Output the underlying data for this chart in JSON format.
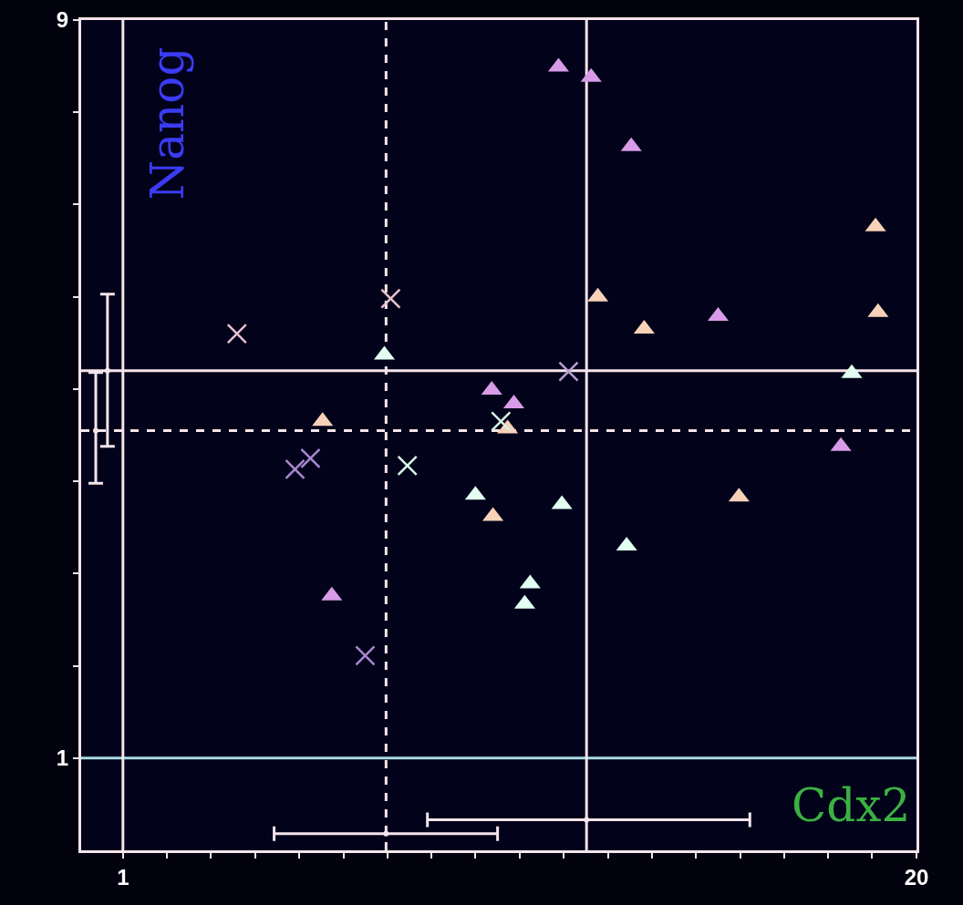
{
  "chart_data": {
    "type": "scatter",
    "xlabel": "Cdx2",
    "ylabel": "Nanog",
    "grid": false,
    "xlim": [
      0,
      20
    ],
    "xticks": [
      1,
      {
        "value": 2.06,
        "label": null
      },
      {
        "value": 3.11,
        "label": null
      },
      {
        "value": 4.17,
        "label": null
      },
      {
        "value": 5.22,
        "label": null
      },
      {
        "value": 6.28,
        "label": null
      },
      {
        "value": 7.33,
        "label": null
      },
      {
        "value": 8.39,
        "label": null
      },
      {
        "value": 9.44,
        "label": null
      },
      {
        "value": 10.5,
        "label": null
      },
      {
        "value": 11.56,
        "label": null
      },
      {
        "value": 12.61,
        "label": null
      },
      {
        "value": 13.67,
        "label": null
      },
      {
        "value": 14.72,
        "label": null
      },
      {
        "value": 15.78,
        "label": null
      },
      {
        "value": 16.83,
        "label": null
      },
      {
        "value": 17.89,
        "label": null
      },
      {
        "value": 18.94,
        "label": null
      },
      20
    ],
    "ylim": [
      0,
      9
    ],
    "yticks": [
      1,
      {
        "value": 2,
        "label": null
      },
      {
        "value": 3,
        "label": null
      },
      {
        "value": 4,
        "label": null
      },
      {
        "value": 5,
        "label": null
      },
      {
        "value": 6,
        "label": null
      },
      {
        "value": 7,
        "label": null
      },
      {
        "value": 8,
        "label": null
      },
      9
    ],
    "ref_lines": [
      {
        "axis": "y",
        "value": 1,
        "color": "#a8dde6",
        "line_style": "solid"
      },
      {
        "axis": "y",
        "value": 5.2,
        "color": "#f5e4ea",
        "line_style": "solid"
      },
      {
        "axis": "y",
        "value": 4.55,
        "color": "#f5e4ea",
        "line_style": "dashed"
      },
      {
        "axis": "x",
        "value": 1,
        "color": "#f5e4ea",
        "line_style": "solid"
      },
      {
        "axis": "x",
        "value": 7.3,
        "color": "#f5e4ea",
        "line_style": "dashed"
      },
      {
        "axis": "x",
        "value": 12.1,
        "color": "#f5e4ea",
        "line_style": "solid"
      }
    ],
    "series": [
      {
        "color": "#d79be8",
        "marker": "triangle",
        "x": [
          11.43,
          12.21,
          13.17,
          9.83,
          10.36,
          15.25,
          6.0,
          18.19
        ],
        "values": [
          8.49,
          8.38,
          7.63,
          4.99,
          4.84,
          5.79,
          2.76,
          4.38
        ]
      },
      {
        "color": "#f7d2b8",
        "marker": "triangle",
        "x": [
          19.02,
          19.08,
          12.37,
          13.48,
          5.78,
          10.21,
          9.86,
          15.75
        ],
        "values": [
          6.76,
          5.83,
          6.0,
          5.65,
          4.65,
          4.57,
          3.62,
          3.83
        ]
      },
      {
        "color": "#e2fff2",
        "marker": "triangle",
        "x": [
          7.26,
          18.45,
          9.44,
          11.51,
          13.06,
          10.75,
          10.62
        ],
        "values": [
          5.37,
          5.17,
          3.85,
          3.75,
          3.3,
          2.89,
          2.67
        ]
      },
      {
        "marker": "cross",
        "colors": [
          "#e8c0d0",
          "#e8c0d0",
          "#a888d0",
          "#a888d0",
          "#d8f8ec",
          "#d8f0e0",
          "#b8a0d0",
          "#a888d0"
        ],
        "x": [
          3.73,
          7.41,
          5.12,
          5.49,
          7.81,
          10.05,
          11.67,
          6.8
        ],
        "values": [
          5.6,
          5.98,
          4.13,
          4.25,
          4.17,
          4.65,
          5.19,
          2.11
        ]
      },
      {
        "color": "#f5e4ea",
        "marker": "none",
        "x": [
          7.3,
          12.1
        ],
        "values": [
          0.18,
          0.33
        ],
        "xerrors": [
          [
            4.62,
            9.97
          ],
          [
            8.29,
            16.01
          ]
        ]
      },
      {
        "color": "#f5e4ea",
        "marker": "none",
        "x": [
          0.63,
          0.35
        ],
        "values": [
          5.2,
          4.55
        ],
        "errors": [
          [
            4.38,
            6.03
          ],
          [
            3.98,
            5.18
          ]
        ]
      }
    ]
  }
}
